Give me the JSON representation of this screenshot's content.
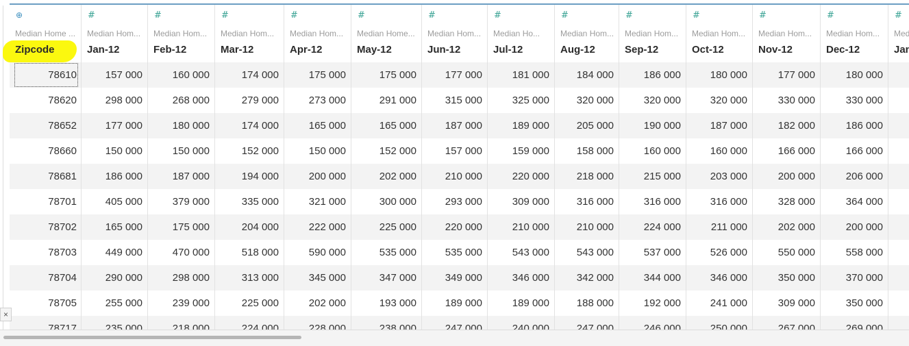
{
  "colors": {
    "accent_line": "#6b9ec3",
    "number_icon": "#3aa394",
    "geo_icon": "#3c8fbf",
    "highlight": "#fbf80f"
  },
  "columns": [
    {
      "icon": "globe-icon",
      "glyph": "⊕",
      "source": "Median Home ...",
      "field": "Zipcode"
    },
    {
      "icon": "number-icon",
      "glyph": "#",
      "source": "Median Hom...",
      "field": "Jan-12"
    },
    {
      "icon": "number-icon",
      "glyph": "#",
      "source": "Median Hom...",
      "field": "Feb-12"
    },
    {
      "icon": "number-icon",
      "glyph": "#",
      "source": "Median Hom...",
      "field": "Mar-12"
    },
    {
      "icon": "number-icon",
      "glyph": "#",
      "source": "Median Hom...",
      "field": "Apr-12"
    },
    {
      "icon": "number-icon",
      "glyph": "#",
      "source": "Median Home...",
      "field": "May-12"
    },
    {
      "icon": "number-icon",
      "glyph": "#",
      "source": "Median Hom...",
      "field": "Jun-12"
    },
    {
      "icon": "number-icon",
      "glyph": "#",
      "source": "Median Ho...",
      "field": "Jul-12"
    },
    {
      "icon": "number-icon",
      "glyph": "#",
      "source": "Median Hom...",
      "field": "Aug-12"
    },
    {
      "icon": "number-icon",
      "glyph": "#",
      "source": "Median Hom...",
      "field": "Sep-12"
    },
    {
      "icon": "number-icon",
      "glyph": "#",
      "source": "Median Hom...",
      "field": "Oct-12"
    },
    {
      "icon": "number-icon",
      "glyph": "#",
      "source": "Median Hom...",
      "field": "Nov-12"
    },
    {
      "icon": "number-icon",
      "glyph": "#",
      "source": "Median Hom...",
      "field": "Dec-12"
    },
    {
      "icon": "number-icon",
      "glyph": "#",
      "source": "Med",
      "field": "Jan"
    }
  ],
  "rows": [
    [
      "78610",
      "157 000",
      "160 000",
      "174 000",
      "175 000",
      "175 000",
      "177 000",
      "181 000",
      "184 000",
      "186 000",
      "180 000",
      "177 000",
      "180 000",
      ""
    ],
    [
      "78620",
      "298 000",
      "268 000",
      "279 000",
      "273 000",
      "291 000",
      "315 000",
      "325 000",
      "320 000",
      "320 000",
      "320 000",
      "330 000",
      "330 000",
      ""
    ],
    [
      "78652",
      "177 000",
      "180 000",
      "174 000",
      "165 000",
      "165 000",
      "187 000",
      "189 000",
      "205 000",
      "190 000",
      "187 000",
      "182 000",
      "186 000",
      ""
    ],
    [
      "78660",
      "150 000",
      "150 000",
      "152 000",
      "150 000",
      "152 000",
      "157 000",
      "159 000",
      "158 000",
      "160 000",
      "160 000",
      "166 000",
      "166 000",
      ""
    ],
    [
      "78681",
      "186 000",
      "187 000",
      "194 000",
      "200 000",
      "202 000",
      "210 000",
      "220 000",
      "218 000",
      "215 000",
      "203 000",
      "200 000",
      "206 000",
      ""
    ],
    [
      "78701",
      "405 000",
      "379 000",
      "335 000",
      "321 000",
      "300 000",
      "293 000",
      "309 000",
      "316 000",
      "316 000",
      "316 000",
      "328 000",
      "364 000",
      ""
    ],
    [
      "78702",
      "165 000",
      "175 000",
      "204 000",
      "222 000",
      "225 000",
      "220 000",
      "210 000",
      "210 000",
      "224 000",
      "211 000",
      "202 000",
      "200 000",
      ""
    ],
    [
      "78703",
      "449 000",
      "470 000",
      "518 000",
      "590 000",
      "535 000",
      "535 000",
      "543 000",
      "543 000",
      "537 000",
      "526 000",
      "550 000",
      "558 000",
      ""
    ],
    [
      "78704",
      "290 000",
      "298 000",
      "313 000",
      "345 000",
      "347 000",
      "349 000",
      "346 000",
      "342 000",
      "344 000",
      "346 000",
      "350 000",
      "370 000",
      ""
    ],
    [
      "78705",
      "255 000",
      "239 000",
      "225 000",
      "202 000",
      "193 000",
      "189 000",
      "189 000",
      "188 000",
      "192 000",
      "241 000",
      "309 000",
      "350 000",
      ""
    ],
    [
      "78717",
      "235 000",
      "218 000",
      "224 000",
      "228 000",
      "238 000",
      "247 000",
      "240 000",
      "247 000",
      "246 000",
      "250 000",
      "267 000",
      "269 000",
      ""
    ]
  ],
  "close_glyph": "×"
}
